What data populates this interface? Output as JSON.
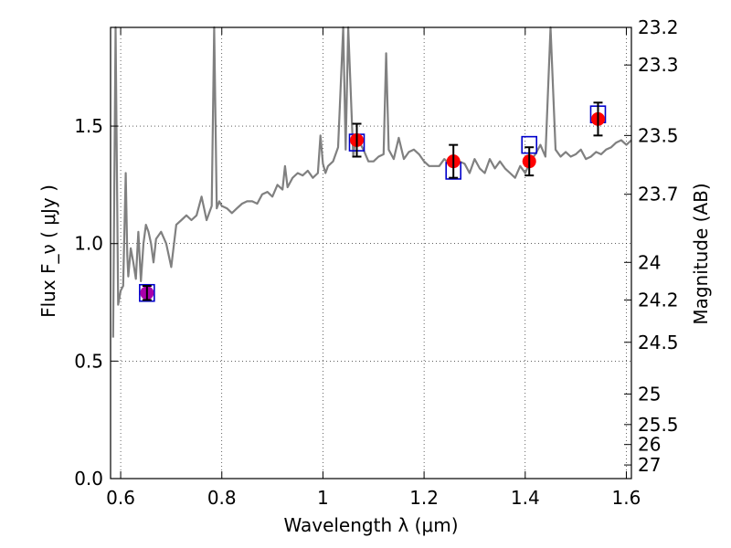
{
  "chart_data": {
    "type": "scatter",
    "xlabel": "Wavelength  λ (μm)",
    "ylabel": "Flux  F_ν  ( μJy )",
    "ylabel_right": "Magnitude (AB)",
    "xlim": [
      0.58,
      1.61
    ],
    "ylim": [
      0.0,
      1.92
    ],
    "grid": true,
    "x_ticks": [
      0.6,
      0.8,
      1.0,
      1.2,
      1.4,
      1.6
    ],
    "x_tick_labels": [
      "0.6",
      "0.8",
      "1",
      "1.2",
      "1.4",
      "1.6"
    ],
    "y_ticks": [
      0.0,
      0.5,
      1.0,
      1.5
    ],
    "y_tick_labels": [
      "0.0",
      "0.5",
      "1.0",
      "1.5"
    ],
    "magnitude_ticks": [
      {
        "label": "23.2",
        "flux": 1.92
      },
      {
        "label": "23.3",
        "flux": 1.76
      },
      {
        "label": "23.5",
        "flux": 1.46
      },
      {
        "label": "23.7",
        "flux": 1.21
      },
      {
        "label": "24",
        "flux": 0.92
      },
      {
        "label": "24.2",
        "flux": 0.76
      },
      {
        "label": "24.5",
        "flux": 0.58
      },
      {
        "label": "25",
        "flux": 0.36
      },
      {
        "label": "25.5",
        "flux": 0.23
      },
      {
        "label": "26",
        "flux": 0.145
      },
      {
        "label": "27",
        "flux": 0.058
      }
    ],
    "series": [
      {
        "kind": "model_spectrum",
        "color": "#808080",
        "x": [
          0.585,
          0.59,
          0.595,
          0.6,
          0.605,
          0.61,
          0.613,
          0.615,
          0.62,
          0.625,
          0.63,
          0.635,
          0.64,
          0.645,
          0.65,
          0.655,
          0.66,
          0.665,
          0.67,
          0.68,
          0.69,
          0.7,
          0.71,
          0.72,
          0.73,
          0.74,
          0.75,
          0.76,
          0.77,
          0.78,
          0.785,
          0.79,
          0.795,
          0.8,
          0.81,
          0.82,
          0.83,
          0.84,
          0.85,
          0.86,
          0.87,
          0.88,
          0.89,
          0.9,
          0.91,
          0.92,
          0.925,
          0.93,
          0.94,
          0.95,
          0.96,
          0.97,
          0.98,
          0.99,
          0.995,
          1.0,
          1.005,
          1.01,
          1.02,
          1.03,
          1.04,
          1.045,
          1.05,
          1.06,
          1.065,
          1.07,
          1.08,
          1.09,
          1.1,
          1.11,
          1.12,
          1.125,
          1.13,
          1.14,
          1.15,
          1.16,
          1.17,
          1.18,
          1.19,
          1.2,
          1.21,
          1.22,
          1.23,
          1.24,
          1.25,
          1.26,
          1.27,
          1.28,
          1.29,
          1.3,
          1.31,
          1.32,
          1.33,
          1.34,
          1.35,
          1.36,
          1.37,
          1.38,
          1.39,
          1.4,
          1.41,
          1.42,
          1.43,
          1.44,
          1.45,
          1.46,
          1.47,
          1.48,
          1.49,
          1.5,
          1.51,
          1.52,
          1.53,
          1.54,
          1.55,
          1.56,
          1.57,
          1.58,
          1.59,
          1.6,
          1.61
        ],
        "y": [
          0.6,
          1.92,
          0.74,
          0.8,
          0.82,
          1.3,
          0.95,
          0.86,
          0.98,
          0.92,
          0.85,
          1.05,
          0.84,
          1.0,
          1.08,
          1.05,
          1.0,
          0.92,
          1.02,
          1.05,
          1.0,
          0.9,
          1.08,
          1.1,
          1.12,
          1.1,
          1.12,
          1.2,
          1.1,
          1.16,
          1.92,
          1.15,
          1.18,
          1.16,
          1.15,
          1.13,
          1.15,
          1.17,
          1.18,
          1.18,
          1.17,
          1.21,
          1.22,
          1.2,
          1.25,
          1.23,
          1.33,
          1.24,
          1.28,
          1.3,
          1.29,
          1.31,
          1.28,
          1.3,
          1.46,
          1.34,
          1.3,
          1.33,
          1.35,
          1.41,
          1.92,
          1.4,
          1.92,
          1.37,
          1.46,
          1.44,
          1.4,
          1.35,
          1.35,
          1.37,
          1.38,
          1.81,
          1.4,
          1.36,
          1.45,
          1.36,
          1.39,
          1.4,
          1.38,
          1.35,
          1.33,
          1.33,
          1.33,
          1.36,
          1.34,
          1.33,
          1.35,
          1.34,
          1.3,
          1.36,
          1.32,
          1.3,
          1.36,
          1.32,
          1.35,
          1.32,
          1.3,
          1.28,
          1.33,
          1.3,
          1.35,
          1.38,
          1.42,
          1.37,
          1.92,
          1.4,
          1.37,
          1.39,
          1.37,
          1.38,
          1.4,
          1.36,
          1.37,
          1.39,
          1.38,
          1.4,
          1.41,
          1.43,
          1.44,
          1.42,
          1.44
        ]
      },
      {
        "kind": "model_photometry",
        "marker": "open-square",
        "color": "#0000cc",
        "x": [
          0.652,
          1.067,
          1.258,
          1.408,
          1.544
        ],
        "y": [
          0.79,
          1.43,
          1.31,
          1.42,
          1.55
        ]
      },
      {
        "kind": "observed_photometry",
        "marker": "filled-circle",
        "colors": [
          "#aa00aa",
          "#ff0000",
          "#ff0000",
          "#ff0000",
          "#ff0000"
        ],
        "x": [
          0.652,
          1.067,
          1.258,
          1.408,
          1.544
        ],
        "y": [
          0.79,
          1.44,
          1.35,
          1.35,
          1.53
        ],
        "yerr": [
          0.03,
          0.07,
          0.07,
          0.06,
          0.07
        ]
      }
    ]
  }
}
